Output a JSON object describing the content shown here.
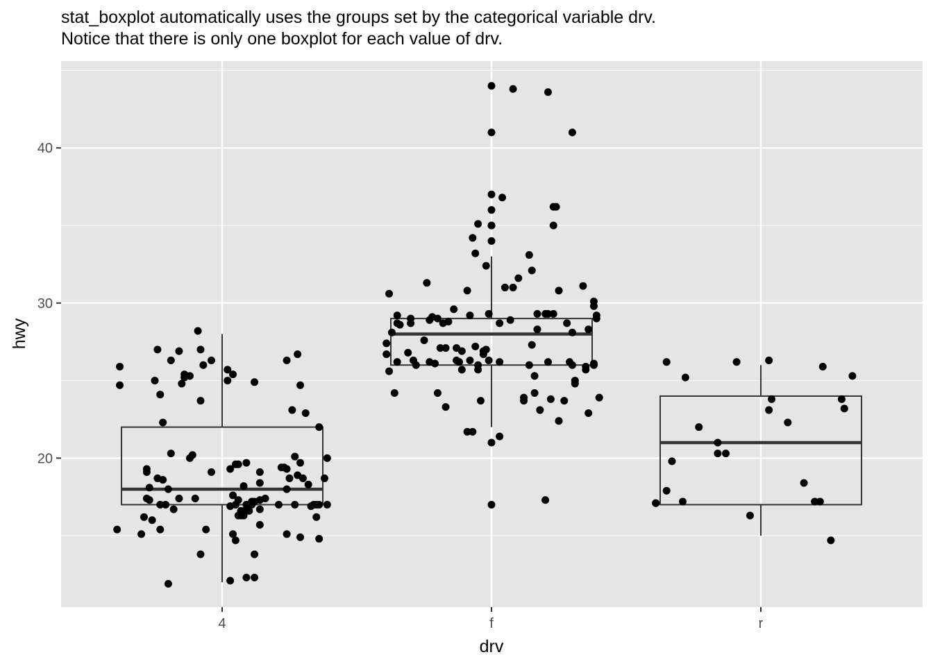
{
  "chart_data": {
    "type": "boxplot",
    "title": "stat_boxplot automatically uses the groups set by the categorical variable drv.",
    "subtitle": "Notice that there is only one boxplot for each value of drv.",
    "xlabel": "drv",
    "ylabel": "hwy",
    "categories": [
      "4",
      "f",
      "r"
    ],
    "ylim": [
      10.4,
      45.6
    ],
    "yticks": [
      20,
      30,
      40
    ],
    "grid": true,
    "boxes": [
      {
        "category": "4",
        "min": 12,
        "q1": 17,
        "median": 18,
        "q3": 22,
        "max": 28
      },
      {
        "category": "f",
        "min": 22,
        "q1": 26,
        "median": 28,
        "q3": 29,
        "max": 33
      },
      {
        "category": "r",
        "min": 15,
        "q1": 17,
        "median": 21,
        "q3": 24,
        "max": 26
      }
    ],
    "points": {
      "4": [
        [
          -0.39,
          15.4
        ],
        [
          -0.38,
          24.7
        ],
        [
          -0.38,
          25.9
        ],
        [
          -0.3,
          15.1
        ],
        [
          -0.29,
          16.2
        ],
        [
          -0.28,
          19.1
        ],
        [
          -0.28,
          19.3
        ],
        [
          -0.28,
          17.4
        ],
        [
          -0.27,
          17.3
        ],
        [
          -0.27,
          18.1
        ],
        [
          -0.26,
          16.0
        ],
        [
          -0.25,
          25.0
        ],
        [
          -0.24,
          27.0
        ],
        [
          -0.24,
          18.7
        ],
        [
          -0.23,
          15.4
        ],
        [
          -0.23,
          17.0
        ],
        [
          -0.23,
          24.1
        ],
        [
          -0.22,
          22.3
        ],
        [
          -0.22,
          18.6
        ],
        [
          -0.21,
          17.0
        ],
        [
          -0.2,
          18.0
        ],
        [
          -0.2,
          11.9
        ],
        [
          -0.19,
          20.3
        ],
        [
          -0.19,
          26.3
        ],
        [
          -0.18,
          16.7
        ],
        [
          -0.16,
          17.4
        ],
        [
          -0.16,
          26.9
        ],
        [
          -0.15,
          24.8
        ],
        [
          -0.14,
          25.2
        ],
        [
          -0.14,
          25.4
        ],
        [
          -0.12,
          25.3
        ],
        [
          -0.12,
          20.0
        ],
        [
          -0.11,
          20.2
        ],
        [
          -0.1,
          17.4
        ],
        [
          -0.09,
          28.2
        ],
        [
          -0.08,
          13.8
        ],
        [
          -0.08,
          23.7
        ],
        [
          -0.08,
          27.0
        ],
        [
          -0.07,
          26.0
        ],
        [
          -0.06,
          15.4
        ],
        [
          -0.04,
          26.3
        ],
        [
          -0.04,
          19.1
        ],
        [
          0.02,
          25.7
        ],
        [
          0.02,
          25.0
        ],
        [
          0.03,
          19.3
        ],
        [
          0.03,
          16.9
        ],
        [
          0.03,
          12.1
        ],
        [
          0.04,
          17.6
        ],
        [
          0.04,
          15.1
        ],
        [
          0.04,
          25.4
        ],
        [
          0.05,
          17.0
        ],
        [
          0.05,
          19.6
        ],
        [
          0.05,
          14.7
        ],
        [
          0.06,
          16.3
        ],
        [
          0.06,
          17.3
        ],
        [
          0.06,
          19.6
        ],
        [
          0.07,
          16.6
        ],
        [
          0.07,
          16.3
        ],
        [
          0.07,
          16.6
        ],
        [
          0.08,
          18.2
        ],
        [
          0.08,
          16.3
        ],
        [
          0.09,
          17.0
        ],
        [
          0.09,
          16.7
        ],
        [
          0.09,
          19.7
        ],
        [
          0.09,
          12.3
        ],
        [
          0.1,
          16.6
        ],
        [
          0.1,
          16.9
        ],
        [
          0.11,
          17.2
        ],
        [
          0.11,
          17.0
        ],
        [
          0.12,
          13.8
        ],
        [
          0.12,
          24.9
        ],
        [
          0.12,
          12.3
        ],
        [
          0.12,
          17.2
        ],
        [
          0.14,
          19.1
        ],
        [
          0.14,
          18.4
        ],
        [
          0.14,
          16.7
        ],
        [
          0.14,
          15.7
        ],
        [
          0.14,
          17.3
        ],
        [
          0.16,
          17.4
        ],
        [
          0.21,
          17.0
        ],
        [
          0.22,
          19.4
        ],
        [
          0.23,
          19.4
        ],
        [
          0.24,
          26.3
        ],
        [
          0.24,
          15.1
        ],
        [
          0.24,
          18.0
        ],
        [
          0.24,
          19.3
        ],
        [
          0.25,
          18.7
        ],
        [
          0.26,
          23.1
        ],
        [
          0.27,
          20.1
        ],
        [
          0.27,
          17.0
        ],
        [
          0.28,
          26.7
        ],
        [
          0.28,
          18.9
        ],
        [
          0.29,
          19.7
        ],
        [
          0.29,
          24.7
        ],
        [
          0.29,
          14.9
        ],
        [
          0.3,
          18.7
        ],
        [
          0.31,
          22.9
        ],
        [
          0.32,
          18.3
        ],
        [
          0.33,
          16.9
        ],
        [
          0.34,
          17.0
        ],
        [
          0.35,
          17.0
        ],
        [
          0.35,
          16.2
        ],
        [
          0.36,
          17.0
        ],
        [
          0.36,
          14.8
        ],
        [
          0.36,
          22.0
        ],
        [
          0.38,
          18.7
        ],
        [
          0.39,
          17.0
        ],
        [
          0.39,
          20.0
        ]
      ],
      "f": [
        [
          -0.39,
          26.7
        ],
        [
          -0.39,
          27.4
        ],
        [
          -0.38,
          25.6
        ],
        [
          -0.38,
          30.6
        ],
        [
          -0.37,
          28.1
        ],
        [
          -0.36,
          24.2
        ],
        [
          -0.35,
          28.7
        ],
        [
          -0.35,
          26.2
        ],
        [
          -0.35,
          29.2
        ],
        [
          -0.34,
          28.6
        ],
        [
          -0.31,
          26.8
        ],
        [
          -0.3,
          29.0
        ],
        [
          -0.3,
          28.7
        ],
        [
          -0.29,
          26.3
        ],
        [
          -0.28,
          26.0
        ],
        [
          -0.25,
          27.6
        ],
        [
          -0.24,
          31.3
        ],
        [
          -0.23,
          28.9
        ],
        [
          -0.23,
          26.2
        ],
        [
          -0.22,
          29.1
        ],
        [
          -0.21,
          26.1
        ],
        [
          -0.2,
          29.0
        ],
        [
          -0.2,
          24.2
        ],
        [
          -0.19,
          27.1
        ],
        [
          -0.18,
          28.7
        ],
        [
          -0.17,
          23.3
        ],
        [
          -0.17,
          27.1
        ],
        [
          -0.16,
          28.8
        ],
        [
          -0.14,
          29.6
        ],
        [
          -0.13,
          26.3
        ],
        [
          -0.13,
          27.1
        ],
        [
          -0.12,
          26.2
        ],
        [
          -0.11,
          26.9
        ],
        [
          -0.11,
          25.7
        ],
        [
          -0.09,
          30.8
        ],
        [
          -0.09,
          21.7
        ],
        [
          -0.08,
          26.3
        ],
        [
          -0.08,
          29.2
        ],
        [
          -0.07,
          21.7
        ],
        [
          -0.07,
          34.2
        ],
        [
          -0.06,
          33.2
        ],
        [
          -0.06,
          27.2
        ],
        [
          -0.05,
          25.7
        ],
        [
          -0.05,
          35.1
        ],
        [
          -0.05,
          26.0
        ],
        [
          -0.04,
          23.7
        ],
        [
          -0.03,
          26.7
        ],
        [
          -0.03,
          26.9
        ],
        [
          -0.02,
          32.4
        ],
        [
          -0.02,
          27.0
        ],
        [
          -0.01,
          26.3
        ],
        [
          -0.01,
          29.3
        ],
        [
          0.0,
          17.0
        ],
        [
          0.0,
          21.0
        ],
        [
          0.0,
          34.0
        ],
        [
          0.0,
          35.0
        ],
        [
          0.0,
          35.0
        ],
        [
          0.0,
          36.0
        ],
        [
          0.0,
          37.0
        ],
        [
          0.0,
          41.0
        ],
        [
          0.0,
          44.0
        ],
        [
          0.03,
          21.4
        ],
        [
          0.03,
          26.2
        ],
        [
          0.03,
          28.7
        ],
        [
          0.04,
          36.8
        ],
        [
          0.05,
          31.0
        ],
        [
          0.07,
          28.9
        ],
        [
          0.08,
          43.8
        ],
        [
          0.08,
          31.0
        ],
        [
          0.1,
          31.6
        ],
        [
          0.12,
          23.9
        ],
        [
          0.12,
          23.7
        ],
        [
          0.14,
          26.0
        ],
        [
          0.14,
          33.1
        ],
        [
          0.15,
          27.3
        ],
        [
          0.15,
          32.1
        ],
        [
          0.16,
          25.3
        ],
        [
          0.16,
          24.2
        ],
        [
          0.17,
          28.3
        ],
        [
          0.17,
          29.3
        ],
        [
          0.18,
          23.1
        ],
        [
          0.2,
          29.3
        ],
        [
          0.2,
          17.3
        ],
        [
          0.21,
          29.3
        ],
        [
          0.21,
          43.6
        ],
        [
          0.21,
          26.2
        ],
        [
          0.22,
          23.8
        ],
        [
          0.23,
          35.0
        ],
        [
          0.23,
          29.3
        ],
        [
          0.23,
          36.2
        ],
        [
          0.24,
          36.2
        ],
        [
          0.25,
          30.8
        ],
        [
          0.25,
          22.4
        ],
        [
          0.27,
          23.7
        ],
        [
          0.28,
          28.7
        ],
        [
          0.29,
          26.2
        ],
        [
          0.3,
          41.0
        ],
        [
          0.3,
          28.1
        ],
        [
          0.3,
          26.0
        ],
        [
          0.31,
          25.0
        ],
        [
          0.31,
          24.8
        ],
        [
          0.34,
          31.1
        ],
        [
          0.35,
          25.7
        ],
        [
          0.35,
          25.9
        ],
        [
          0.36,
          22.9
        ],
        [
          0.36,
          28.3
        ],
        [
          0.38,
          30.1
        ],
        [
          0.38,
          26.1
        ],
        [
          0.38,
          26.0
        ],
        [
          0.38,
          29.8
        ],
        [
          0.39,
          29.2
        ],
        [
          0.39,
          29.0
        ],
        [
          0.4,
          23.9
        ]
      ],
      "r": [
        [
          -0.39,
          17.1
        ],
        [
          -0.39,
          17.1
        ],
        [
          -0.35,
          17.9
        ],
        [
          -0.35,
          26.2
        ],
        [
          -0.33,
          19.8
        ],
        [
          -0.29,
          17.2
        ],
        [
          -0.28,
          25.2
        ],
        [
          -0.23,
          22.0
        ],
        [
          -0.16,
          21.0
        ],
        [
          -0.16,
          20.3
        ],
        [
          -0.13,
          20.3
        ],
        [
          -0.09,
          26.2
        ],
        [
          -0.04,
          16.3
        ],
        [
          0.03,
          26.3
        ],
        [
          0.04,
          23.8
        ],
        [
          0.03,
          23.1
        ],
        [
          0.1,
          22.3
        ],
        [
          0.16,
          18.4
        ],
        [
          0.2,
          17.2
        ],
        [
          0.22,
          17.2
        ],
        [
          0.23,
          25.9
        ],
        [
          0.26,
          14.7
        ],
        [
          0.3,
          23.8
        ],
        [
          0.31,
          23.2
        ],
        [
          0.34,
          25.3
        ]
      ]
    }
  }
}
